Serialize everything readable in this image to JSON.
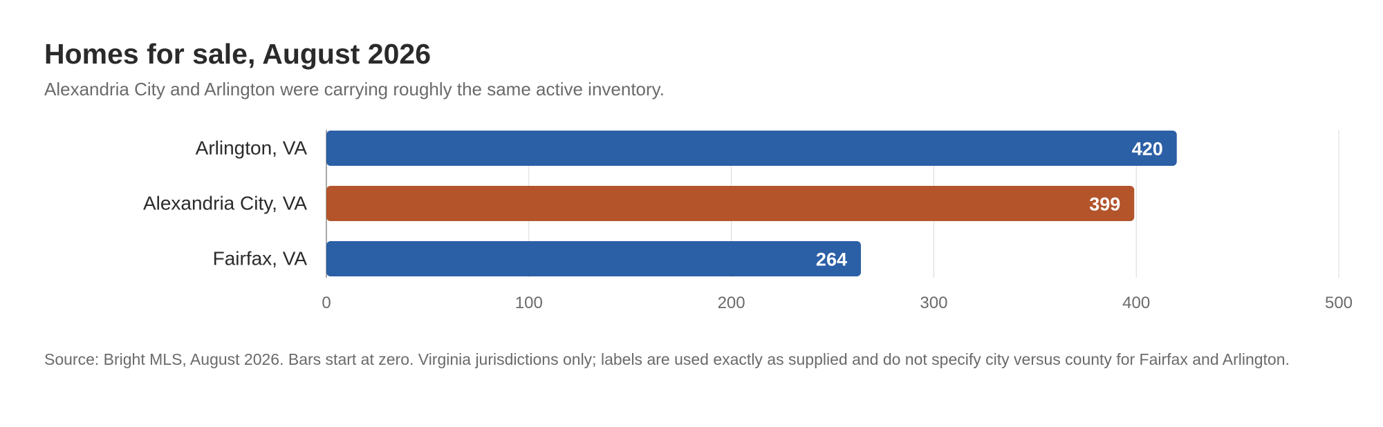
{
  "title": "Homes for sale, August 2026",
  "subtitle": "Alexandria City and Arlington were carrying roughly the same active inventory.",
  "source": "Source: Bright MLS, August 2026. Bars start at zero. Virginia jurisdictions only; labels are used exactly as supplied and do not specify city versus county for Fairfax and Arlington.",
  "chart_data": {
    "type": "bar",
    "orientation": "horizontal",
    "categories": [
      "Arlington, VA",
      "Alexandria City, VA",
      "Fairfax, VA"
    ],
    "values": [
      420,
      399,
      264
    ],
    "colors": [
      "#2b5fa6",
      "#b3542b",
      "#2b5fa6"
    ],
    "xlim": [
      0,
      500
    ],
    "xticks": [
      0,
      100,
      200,
      300,
      400,
      500
    ],
    "grid": true,
    "xlabel": "",
    "ylabel": ""
  }
}
